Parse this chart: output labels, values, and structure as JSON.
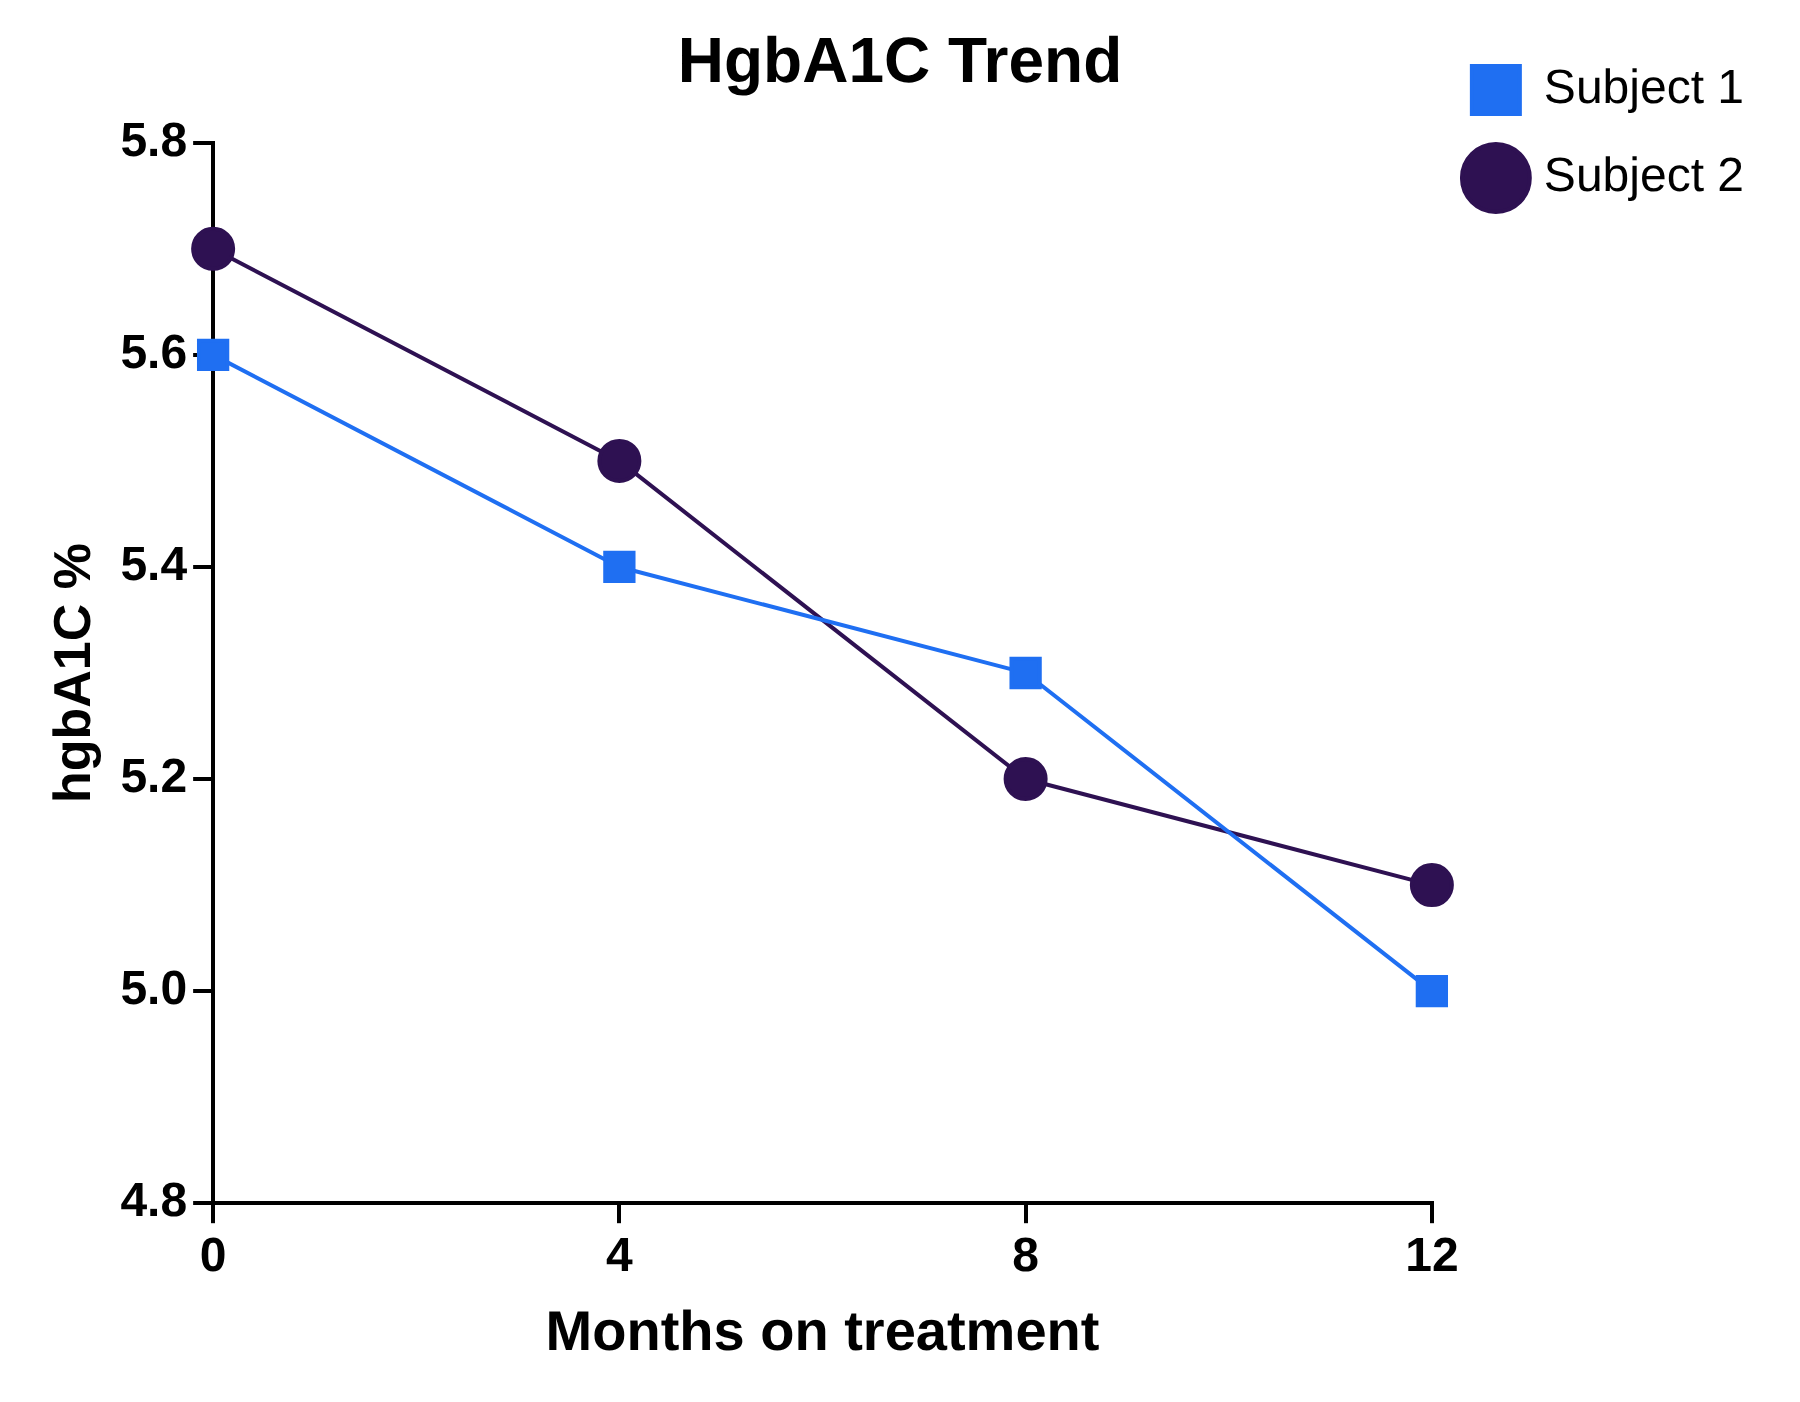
{
  "chart_data": {
    "type": "line",
    "title": "HgbA1C Trend",
    "xlabel": "Months on treatment",
    "ylabel": "hgbA1C %",
    "x": [
      0,
      4,
      8,
      12
    ],
    "series": [
      {
        "name": "Subject 1",
        "color": "#1f6ff2",
        "marker": "square",
        "values": [
          5.6,
          5.4,
          5.3,
          5.0
        ]
      },
      {
        "name": "Subject 2",
        "color": "#2e1152",
        "marker": "circle",
        "values": [
          5.7,
          5.5,
          5.2,
          5.1
        ]
      }
    ],
    "xlim": [
      0,
      12
    ],
    "xticks": [
      0,
      4,
      8,
      12
    ],
    "ylim": [
      4.8,
      5.8
    ],
    "yticks": [
      {
        "value": 4.8,
        "label": "4.8"
      },
      {
        "value": 5,
        "label": "5.0"
      },
      {
        "value": 5.2,
        "label": "5.2"
      },
      {
        "value": 5.4,
        "label": "5.4"
      },
      {
        "value": 5.6,
        "label": "5.6"
      },
      {
        "value": 5.8,
        "label": "5.8"
      }
    ],
    "grid": false,
    "legend": "top right",
    "line_style": "solid"
  }
}
